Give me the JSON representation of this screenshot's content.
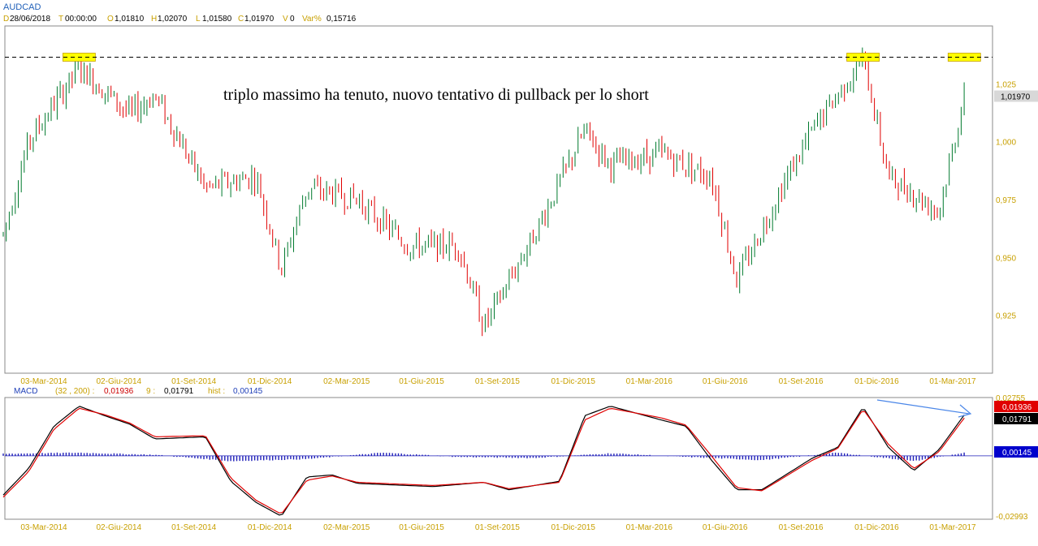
{
  "header": {
    "symbol": "AUDCAD",
    "date_label": "D",
    "date_value": "28/06/2018",
    "time_label": "T",
    "time_value": "00:00:00",
    "open_label": "O",
    "open_value": "1,01810",
    "high_label": "H",
    "high_value": "1,02070",
    "low_label": "L",
    "low_value": "1,01580",
    "close_label": "C",
    "close_value": "1,01970",
    "volume_label": "V",
    "volume_value": "0",
    "var_label": "Var%",
    "var_value": "0,15716"
  },
  "macd_header": {
    "name": "MACD",
    "params": "(32 , 200) :",
    "macd_value": "0,01936",
    "signal_label": "9 :",
    "signal_value": "0,01791",
    "hist_label": "hist :",
    "hist_value": "0,00145"
  },
  "annotation": "triplo massimo ha tenuto, nuovo tentativo di pullback per lo short",
  "colors": {
    "up": "#007a2e",
    "down": "#e00000",
    "axis_text": "#c8a000",
    "macd_line": "#000000",
    "signal_line": "#e00000",
    "hist": "#1f1fb8",
    "highlight": "#ffff00",
    "arrow": "#4a86e8"
  },
  "chart_data": [
    {
      "type": "candlestick",
      "title": "AUDCAD",
      "ylim": [
        0.9,
        1.05
      ],
      "y_ticks": [
        "1,025",
        "1,000",
        "0,975",
        "0,950",
        "0,925"
      ],
      "y_tick_values": [
        1.025,
        1.0,
        0.975,
        0.95,
        0.925
      ],
      "last_price_label": "1,01970",
      "last_price": 1.0197,
      "x_ticks": [
        "03-Mar-2014",
        "02-Giu-2014",
        "01-Set-2014",
        "01-Dic-2014",
        "02-Mar-2015",
        "01-Giu-2015",
        "01-Set-2015",
        "01-Dic-2015",
        "01-Mar-2016",
        "01-Giu-2016",
        "01-Set-2016",
        "01-Dic-2016",
        "01-Mar-2017"
      ],
      "resistance_level": 1.0365,
      "triple_top_dates": [
        "Apr-2014",
        "Nov-2016",
        "Mar-2017"
      ],
      "close_path": {
        "x": [
          "Jan-2014",
          "Feb-2014",
          "Apr-2014",
          "Jun-2014",
          "Jul-2014",
          "Sep-2014",
          "Nov-2014",
          "Dec-2014",
          "Jan-2015",
          "Mar-2015",
          "May-2015",
          "Jul-2015",
          "Aug-2015",
          "Oct-2015",
          "Dec-2015",
          "Jan-2016",
          "Mar-2016",
          "May-2016",
          "Jun-2016",
          "Aug-2016",
          "Sep-2016",
          "Nov-2016",
          "Dec-2016",
          "Feb-2017",
          "Mar-2017",
          "Mar-2017"
        ],
        "y": [
          0.96,
          1.0,
          1.032,
          1.012,
          1.02,
          0.98,
          0.985,
          0.945,
          0.98,
          0.975,
          0.955,
          0.955,
          0.92,
          0.96,
          1.005,
          0.99,
          0.995,
          0.985,
          0.94,
          0.985,
          1.005,
          1.036,
          0.985,
          0.97,
          1.02,
          1.0197
        ]
      }
    },
    {
      "type": "line",
      "title": "MACD",
      "ylim": [
        -0.02993,
        0.02755
      ],
      "y_ticks": [
        "0,02755",
        "-0,02993"
      ],
      "value_labels": [
        "0,01936",
        "0,01791",
        "0,00145"
      ],
      "x_ticks": [
        "03-Mar-2014",
        "02-Giu-2014",
        "01-Set-2014",
        "01-Dic-2014",
        "02-Mar-2015",
        "01-Giu-2015",
        "01-Set-2015",
        "01-Dic-2015",
        "01-Mar-2016",
        "01-Giu-2016",
        "01-Set-2016",
        "01-Dic-2016",
        "01-Mar-2017"
      ],
      "series": [
        {
          "name": "MACD",
          "x": [
            "Jan-2014",
            "Feb-2014",
            "Mar-2014",
            "Apr-2014",
            "May-2014",
            "Jun-2014",
            "Jul-2014",
            "Sep-2014",
            "Oct-2014",
            "Nov-2014",
            "Dec-2014",
            "Jan-2015",
            "Feb-2015",
            "Mar-2015",
            "May-2015",
            "Jun-2015",
            "Aug-2015",
            "Sep-2015",
            "Nov-2015",
            "Dec-2015",
            "Jan-2016",
            "Mar-2016",
            "Apr-2016",
            "May-2016",
            "Jun-2016",
            "Jul-2016",
            "Sep-2016",
            "Oct-2016",
            "Nov-2016",
            "Dec-2016",
            "Jan-2017",
            "Feb-2017",
            "Mar-2017"
          ],
          "y": [
            -0.0185,
            -0.006,
            0.014,
            0.0235,
            0.019,
            0.015,
            0.008,
            0.009,
            -0.012,
            -0.022,
            -0.0285,
            -0.01,
            -0.009,
            -0.013,
            -0.014,
            -0.0145,
            -0.0125,
            -0.016,
            -0.012,
            0.019,
            0.0235,
            0.017,
            0.014,
            -0.002,
            -0.016,
            -0.016,
            -0.001,
            0.004,
            0.023,
            0.004,
            -0.007,
            0.003,
            0.01936
          ]
        },
        {
          "name": "Signal",
          "x": [
            "Jan-2014",
            "Feb-2014",
            "Mar-2014",
            "Apr-2014",
            "May-2014",
            "Jun-2014",
            "Jul-2014",
            "Sep-2014",
            "Oct-2014",
            "Nov-2014",
            "Dec-2014",
            "Jan-2015",
            "Feb-2015",
            "Mar-2015",
            "May-2015",
            "Jun-2015",
            "Aug-2015",
            "Sep-2015",
            "Nov-2015",
            "Dec-2015",
            "Jan-2016",
            "Mar-2016",
            "Apr-2016",
            "May-2016",
            "Jun-2016",
            "Jul-2016",
            "Sep-2016",
            "Oct-2016",
            "Nov-2016",
            "Dec-2016",
            "Jan-2017",
            "Feb-2017",
            "Mar-2017"
          ],
          "y": [
            -0.0195,
            -0.0075,
            0.0125,
            0.0225,
            0.0195,
            0.0155,
            0.009,
            0.0095,
            -0.0105,
            -0.021,
            -0.0275,
            -0.0115,
            -0.0095,
            -0.0125,
            -0.0135,
            -0.014,
            -0.0125,
            -0.0155,
            -0.0125,
            0.017,
            0.0225,
            0.018,
            0.0145,
            0.0,
            -0.015,
            -0.0165,
            -0.002,
            0.0035,
            0.022,
            0.0055,
            -0.006,
            0.002,
            0.01791
          ]
        },
        {
          "name": "hist",
          "x": [
            "Jan-2014",
            "Apr-2014",
            "Jul-2014",
            "Oct-2014",
            "Jan-2015",
            "Apr-2015",
            "Jul-2015",
            "Oct-2015",
            "Jan-2016",
            "Apr-2016",
            "Jul-2016",
            "Oct-2016",
            "Jan-2017",
            "Mar-2017"
          ],
          "y": [
            0.001,
            0.0015,
            0.0005,
            -0.0025,
            -0.0015,
            0.0015,
            -0.0005,
            -0.001,
            0.0012,
            -0.0005,
            -0.002,
            0.0015,
            -0.0025,
            0.00145
          ]
        }
      ]
    }
  ]
}
